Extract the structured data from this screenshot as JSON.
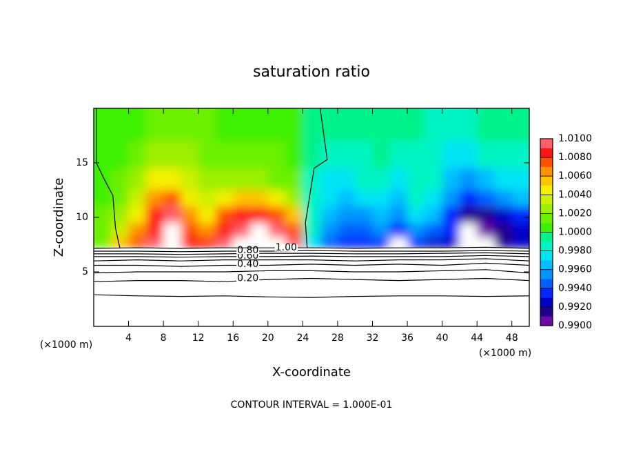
{
  "chart_data": {
    "type": "contour",
    "title": "saturation ratio",
    "x_label": "X-coordinate",
    "y_label": "Z-coordinate",
    "x_unit": "(×1000 m)",
    "y_unit": "(×1000 m)",
    "annotation": "CONTOUR INTERVAL = 1.000E-01",
    "xlim": [
      0,
      50
    ],
    "ylim": [
      0,
      20
    ],
    "xticks": [
      4,
      8,
      12,
      16,
      20,
      24,
      28,
      32,
      36,
      40,
      44,
      48
    ],
    "yticks": [
      5,
      10,
      15
    ],
    "clim": [
      0.99,
      1.01
    ],
    "colors": [
      "#6a0aa8",
      "#20008c",
      "#0000c8",
      "#0028ff",
      "#0060ff",
      "#0094ff",
      "#00beff",
      "#00e4f4",
      "#00f4c4",
      "#00f28a",
      "#3ef000",
      "#6cf000",
      "#9cf000",
      "#ccf000",
      "#f4f000",
      "#ffc400",
      "#ff9200",
      "#ff5200",
      "#ff1414",
      "#ff5e6a",
      "#ffa0a4"
    ],
    "cticks": [
      {
        "value": 0.99,
        "label": "0.9900"
      },
      {
        "value": 0.992,
        "label": "0.9920"
      },
      {
        "value": 0.994,
        "label": "0.9940"
      },
      {
        "value": 0.996,
        "label": "0.9960"
      },
      {
        "value": 0.998,
        "label": "0.9980"
      },
      {
        "value": 1.0,
        "label": "1.0000"
      },
      {
        "value": 1.002,
        "label": "1.0020"
      },
      {
        "value": 1.004,
        "label": "1.0040"
      },
      {
        "value": 1.006,
        "label": "1.0060"
      },
      {
        "value": 1.008,
        "label": "1.0080"
      },
      {
        "value": 1.01,
        "label": "1.0100"
      }
    ],
    "xbins": [
      0,
      2,
      4,
      6,
      8,
      10,
      12,
      14,
      16,
      18,
      20,
      22,
      24,
      26,
      28,
      30,
      32,
      34,
      36,
      38,
      40,
      42,
      44,
      46,
      48,
      50
    ],
    "ybins": [
      7.2,
      8.2,
      9.5,
      11,
      12.5,
      14.5,
      17,
      20
    ],
    "z_values": [
      [
        1.001,
        1.005,
        1.007,
        1.009,
        1.011,
        1.008,
        1.008,
        1.009,
        1.011,
        1.011,
        1.011,
        1.009,
        0.997,
        0.994,
        0.993,
        0.993,
        0.993,
        0.989,
        0.993,
        0.992,
        0.992,
        0.989,
        0.989,
        0.991,
        0.992
      ],
      [
        1.001,
        1.003,
        1.006,
        1.008,
        1.011,
        1.007,
        1.006,
        1.008,
        1.009,
        1.011,
        1.009,
        1.007,
        0.998,
        0.995,
        0.994,
        0.994,
        0.995,
        0.993,
        0.995,
        0.994,
        0.993,
        0.989,
        0.99,
        0.991,
        0.992
      ],
      [
        1.001,
        1.002,
        1.004,
        1.008,
        1.009,
        1.006,
        1.004,
        1.007,
        1.008,
        1.008,
        1.007,
        1.005,
        0.998,
        0.996,
        0.995,
        0.995,
        0.996,
        0.995,
        0.997,
        0.996,
        0.993,
        0.991,
        0.991,
        0.992,
        0.993
      ],
      [
        1.0,
        1.001,
        1.003,
        1.006,
        1.007,
        1.004,
        1.003,
        1.004,
        1.005,
        1.005,
        1.004,
        1.002,
        0.998,
        0.997,
        0.996,
        0.997,
        0.997,
        0.996,
        0.998,
        0.997,
        0.995,
        0.993,
        0.994,
        0.995,
        0.996
      ],
      [
        1.0,
        1.001,
        1.002,
        1.004,
        1.004,
        1.003,
        1.002,
        1.002,
        1.002,
        1.002,
        1.001,
        1.001,
        0.998,
        0.997,
        0.997,
        0.998,
        0.998,
        0.997,
        0.998,
        0.998,
        0.996,
        0.995,
        0.996,
        0.997,
        0.997
      ],
      [
        1.0,
        1.0,
        1.001,
        1.002,
        1.002,
        1.002,
        1.001,
        1.001,
        1.001,
        1.001,
        1.001,
        1.0,
        0.999,
        0.998,
        0.998,
        0.998,
        0.999,
        0.998,
        0.998,
        0.998,
        0.997,
        0.997,
        0.998,
        0.998,
        0.998
      ],
      [
        1.0,
        1.0,
        1.0,
        1.001,
        1.001,
        1.001,
        1.001,
        1.0,
        1.0,
        1.0,
        1.0,
        1.0,
        0.999,
        0.999,
        0.999,
        0.999,
        0.999,
        0.999,
        0.999,
        0.998,
        0.998,
        0.998,
        0.999,
        0.999,
        0.999
      ]
    ],
    "contours": [
      {
        "level": 0.1,
        "x": [
          0,
          5,
          10,
          15,
          20,
          25,
          30,
          35,
          40,
          45,
          50
        ],
        "z": [
          2.9,
          2.8,
          2.75,
          2.8,
          2.7,
          2.65,
          2.75,
          2.8,
          2.8,
          2.75,
          2.8
        ]
      },
      {
        "level": 0.2,
        "label": "0.20",
        "x": [
          0,
          5,
          10,
          15,
          20,
          25,
          30,
          35,
          40,
          45,
          50
        ],
        "z": [
          4.1,
          4.2,
          4.2,
          4.1,
          4.3,
          4.4,
          4.3,
          4.2,
          4.3,
          4.4,
          4.2
        ]
      },
      {
        "level": 0.3,
        "x": [
          0,
          5,
          10,
          15,
          20,
          25,
          30,
          35,
          40,
          45,
          50
        ],
        "z": [
          4.9,
          5.0,
          5.0,
          5.0,
          5.1,
          5.1,
          5.0,
          5.0,
          5.1,
          5.2,
          4.9
        ]
      },
      {
        "level": 0.4,
        "label": "0.40",
        "x": [
          0,
          5,
          10,
          15,
          20,
          25,
          30,
          35,
          40,
          45,
          50
        ],
        "z": [
          5.6,
          5.6,
          5.5,
          5.6,
          5.6,
          5.7,
          5.6,
          5.7,
          5.6,
          5.8,
          5.6
        ]
      },
      {
        "level": 0.5,
        "x": [
          0,
          5,
          10,
          15,
          20,
          25,
          30,
          35,
          40,
          45,
          50
        ],
        "z": [
          6.0,
          6.1,
          6.0,
          6.1,
          6.1,
          6.1,
          6.0,
          6.1,
          6.1,
          6.2,
          6.0
        ]
      },
      {
        "level": 0.6,
        "label": "0.60",
        "x": [
          0,
          5,
          10,
          15,
          20,
          25,
          30,
          35,
          40,
          45,
          50
        ],
        "z": [
          6.4,
          6.4,
          6.35,
          6.4,
          6.4,
          6.45,
          6.4,
          6.4,
          6.4,
          6.5,
          6.4
        ]
      },
      {
        "level": 0.7,
        "x": [
          0,
          5,
          10,
          15,
          20,
          25,
          30,
          35,
          40,
          45,
          50
        ],
        "z": [
          6.65,
          6.65,
          6.6,
          6.65,
          6.7,
          6.7,
          6.65,
          6.65,
          6.7,
          6.75,
          6.65
        ]
      },
      {
        "level": 0.8,
        "label": "0.80",
        "x": [
          0,
          5,
          10,
          15,
          20,
          25,
          30,
          35,
          40,
          45,
          50
        ],
        "z": [
          6.9,
          6.9,
          6.85,
          6.9,
          6.9,
          6.95,
          6.9,
          6.9,
          6.9,
          6.95,
          6.9
        ]
      },
      {
        "level": 1.0,
        "label": "1.00",
        "x": [
          0,
          5,
          10,
          15,
          20,
          25,
          30,
          35,
          40,
          45,
          50,
          null,
          0.3,
          0.3,
          0.3,
          1.2,
          2.2,
          2.5,
          3.0,
          null,
          26.0,
          26.8,
          25.3,
          24.8,
          24.3,
          24.5
        ],
        "z": [
          7.15,
          7.2,
          7.15,
          7.2,
          7.2,
          7.2,
          7.15,
          7.2,
          7.2,
          7.25,
          7.15,
          null,
          20,
          17,
          15,
          13.5,
          12,
          9,
          7.2,
          null,
          20,
          15.3,
          14.5,
          12,
          9.5,
          7.2
        ]
      }
    ]
  }
}
